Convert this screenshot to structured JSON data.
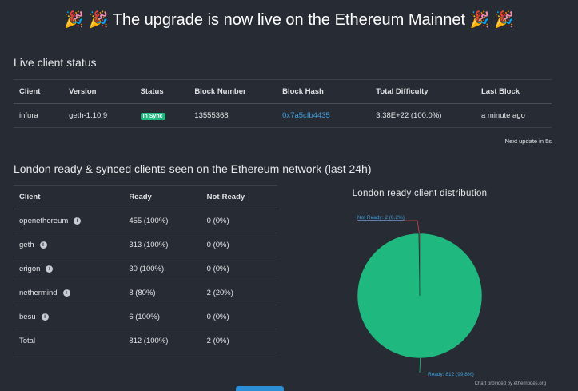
{
  "header": {
    "title": "🎉 🎉 The upgrade is now live on the Ethereum Mainnet 🎉 🎉"
  },
  "live_status": {
    "title": "Live client status",
    "columns": [
      "Client",
      "Version",
      "Status",
      "Block Number",
      "Block Hash",
      "Total Difficulty",
      "Last Block"
    ],
    "rows": [
      [
        "infura",
        "geth-1.10.9",
        "In Sync",
        "13555368",
        "0x7a5cfb4435",
        "3.38E+22 (100.0%)",
        "a minute ago"
      ]
    ],
    "next_update": "Next update in 5s"
  },
  "london": {
    "title_before": "London ready &",
    "title_link": "synced",
    "title_after": "clients seen on the Ethereum network (last 24h)",
    "columns": [
      "Client",
      "Ready",
      "Not-Ready"
    ],
    "rows": [
      [
        "openethereum",
        "455 (100%)",
        "0 (0%)"
      ],
      [
        "geth",
        "313 (100%)",
        "0 (0%)"
      ],
      [
        "erigon",
        "30 (100%)",
        "0 (0%)"
      ],
      [
        "nethermind",
        "8 (80%)",
        "2 (20%)"
      ],
      [
        "besu",
        "6 (100%)",
        "0 (0%)"
      ],
      [
        "Total",
        "812 (100%)",
        "2 (0%)"
      ]
    ]
  },
  "chart_data": {
    "type": "pie",
    "title": "London ready client distribution",
    "values": [
      2,
      812
    ],
    "value_labels": [
      "Not Ready: 2 (0.2%)",
      "Ready: 812 (99.8%)"
    ],
    "colors": [
      "#e0414f",
      "#1fb87f"
    ],
    "footnote": "Chart provided by ethernodes.org"
  }
}
